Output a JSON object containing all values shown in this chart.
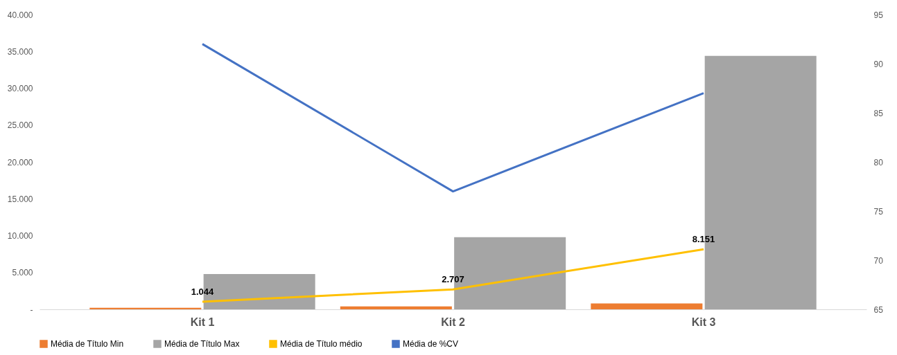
{
  "chart_data": {
    "type": "bar",
    "categories": [
      "Kit 1",
      "Kit 2",
      "Kit 3"
    ],
    "series": [
      {
        "name": "Média de Título Min",
        "color": "#ed7d31",
        "values": [
          200,
          400,
          800
        ]
      },
      {
        "name": "Média de Título Max",
        "color": "#a5a5a5",
        "values": [
          4800,
          9800,
          34400
        ]
      },
      {
        "name": "Média de Título médio",
        "color": "#ffc000",
        "type": "line",
        "values": [
          1044,
          2707,
          8151
        ],
        "value_labels": [
          "1.044",
          "2.707",
          "8.151"
        ]
      },
      {
        "name": "Média de %CV",
        "color": "#4472c4",
        "type": "line",
        "axis": "y2",
        "values": [
          92,
          77,
          87
        ]
      }
    ],
    "ylim": [
      0,
      40000
    ],
    "yticks": [
      {
        "value": 0,
        "label": "-"
      },
      {
        "value": 5000,
        "label": "5.000"
      },
      {
        "value": 10000,
        "label": "10.000"
      },
      {
        "value": 15000,
        "label": "15.000"
      },
      {
        "value": 20000,
        "label": "20.000"
      },
      {
        "value": 25000,
        "label": "25.000"
      },
      {
        "value": 30000,
        "label": "30.000"
      },
      {
        "value": 35000,
        "label": "35.000"
      },
      {
        "value": 40000,
        "label": "40.000"
      }
    ],
    "y2lim": [
      65,
      95
    ],
    "y2ticks": [
      65,
      70,
      75,
      80,
      85,
      90,
      95
    ],
    "legend": "bottom",
    "grid": false
  }
}
